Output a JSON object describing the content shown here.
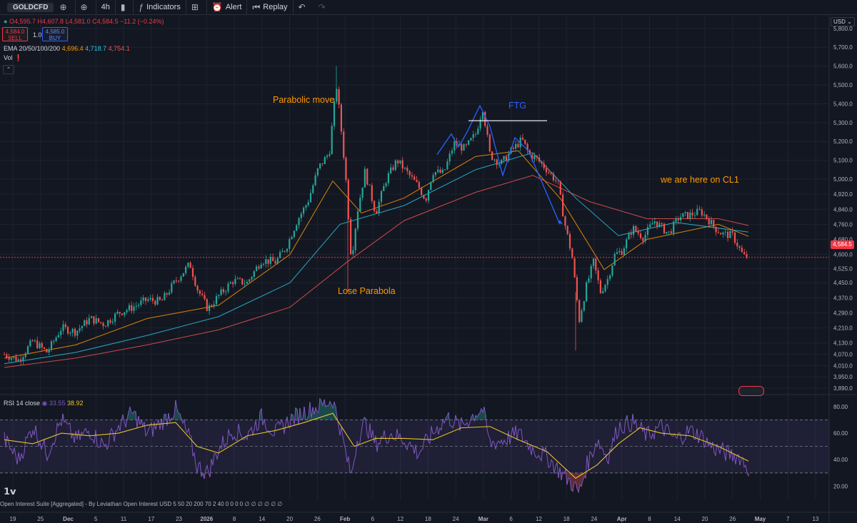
{
  "toolbar": {
    "symbol": "GOLDCFD",
    "interval": "4h",
    "indicators_label": "Indicators",
    "alert_label": "Alert",
    "replay_label": "Replay"
  },
  "legend": {
    "ohlc": {
      "open": "4,595.7",
      "high": "4,607.8",
      "low": "4,581.0",
      "close": "4,584.5",
      "change": "−11.2 (−0.24%)"
    },
    "sell_price": "4,584.0",
    "sell_label": "SELL",
    "spread": "1.0",
    "buy_price": "4,585.0",
    "buy_label": "BUY",
    "ema_title": "EMA 20/50/100/200",
    "ema_values": [
      "4,696.4",
      "4,718.7",
      "4,754.1"
    ],
    "vol_label": "Vol",
    "rsi_title": "RSI 14 close",
    "rsi_values": [
      "33.55",
      "38.92"
    ]
  },
  "colors": {
    "up": "#26a69a",
    "down": "#ef5350",
    "ema20": "#ff9800",
    "ema50": "#26c6da",
    "ema100": "#ef5350",
    "annotation": "#ff9800",
    "pattern": "#2962ff",
    "rsi": "#7e57c2",
    "rsi_ma": "#e6c229"
  },
  "annotations": {
    "parabolic": "Parabolic move",
    "lose": "Lose Parabola",
    "ftg": "FTG",
    "here": "we are here on CL1"
  },
  "currency": "USD",
  "current_price": "4,584.5",
  "bottom_text": "Open Interest Suite [Aggregated] - By Leviathan Open Interest USD 5 50 20 200 70 2 40  0 0 0 0 ∅ ∅ ∅ ∅ ∅ ∅",
  "chart_data": [
    {
      "type": "candlestick",
      "title": "GOLDCFD 4h",
      "x_ticks": [
        "19",
        "25",
        "Dec",
        "5",
        "11",
        "17",
        "23",
        "2026",
        "8",
        "14",
        "20",
        "26",
        "Feb",
        "6",
        "12",
        "18",
        "24",
        "Mar",
        "6",
        "12",
        "18",
        "24",
        "Apr",
        "8",
        "14",
        "20",
        "26",
        "May",
        "7",
        "13"
      ],
      "y_ticks": [
        5800,
        5700,
        5600,
        5500,
        5400,
        5300,
        5200,
        5100,
        5000,
        4920,
        4840,
        4760,
        4680,
        4600,
        4525,
        4450,
        4370,
        4290,
        4210,
        4130,
        4070,
        4010,
        3950,
        3890
      ],
      "ylim": [
        3860,
        5860
      ],
      "close_path": [
        [
          0,
          4070
        ],
        [
          20,
          4040
        ],
        [
          40,
          4140
        ],
        [
          60,
          4080
        ],
        [
          80,
          4210
        ],
        [
          100,
          4190
        ],
        [
          120,
          4260
        ],
        [
          140,
          4230
        ],
        [
          160,
          4290
        ],
        [
          180,
          4320
        ],
        [
          200,
          4360
        ],
        [
          220,
          4350
        ],
        [
          240,
          4460
        ],
        [
          260,
          4550
        ],
        [
          270,
          4420
        ],
        [
          285,
          4310
        ],
        [
          300,
          4380
        ],
        [
          320,
          4460
        ],
        [
          340,
          4450
        ],
        [
          360,
          4570
        ],
        [
          380,
          4560
        ],
        [
          395,
          4640
        ],
        [
          410,
          4780
        ],
        [
          425,
          4880
        ],
        [
          440,
          5060
        ],
        [
          455,
          5140
        ],
        [
          465,
          5500
        ],
        [
          470,
          5330
        ],
        [
          478,
          5020
        ],
        [
          486,
          4570
        ],
        [
          494,
          4820
        ],
        [
          505,
          5040
        ],
        [
          520,
          4820
        ],
        [
          535,
          5000
        ],
        [
          550,
          5100
        ],
        [
          565,
          5030
        ],
        [
          580,
          4960
        ],
        [
          590,
          4890
        ],
        [
          600,
          5040
        ],
        [
          615,
          5030
        ],
        [
          630,
          5190
        ],
        [
          645,
          5160
        ],
        [
          660,
          5240
        ],
        [
          670,
          5380
        ],
        [
          680,
          5130
        ],
        [
          695,
          5080
        ],
        [
          710,
          5150
        ],
        [
          725,
          5210
        ],
        [
          735,
          5130
        ],
        [
          745,
          5110
        ],
        [
          760,
          5050
        ],
        [
          775,
          4980
        ],
        [
          785,
          4760
        ],
        [
          795,
          4590
        ],
        [
          805,
          4250
        ],
        [
          815,
          4430
        ],
        [
          825,
          4560
        ],
        [
          835,
          4400
        ],
        [
          845,
          4470
        ],
        [
          855,
          4600
        ],
        [
          865,
          4620
        ],
        [
          880,
          4740
        ],
        [
          895,
          4690
        ],
        [
          910,
          4780
        ],
        [
          930,
          4710
        ],
        [
          945,
          4800
        ],
        [
          960,
          4810
        ],
        [
          975,
          4830
        ],
        [
          985,
          4790
        ],
        [
          995,
          4740
        ],
        [
          1005,
          4710
        ],
        [
          1020,
          4700
        ],
        [
          1035,
          4590
        ],
        [
          1042,
          4584.5
        ]
      ],
      "ema_series": [
        {
          "name": "EMA 20",
          "values": [
            [
              0,
              4050
            ],
            [
              100,
              4120
            ],
            [
              200,
              4260
            ],
            [
              300,
              4330
            ],
            [
              400,
              4600
            ],
            [
              460,
              4990
            ],
            [
              500,
              4820
            ],
            [
              560,
              4900
            ],
            [
              660,
              5120
            ],
            [
              720,
              5150
            ],
            [
              780,
              4890
            ],
            [
              840,
              4520
            ],
            [
              900,
              4680
            ],
            [
              1000,
              4760
            ],
            [
              1042,
              4696.4
            ]
          ]
        },
        {
          "name": "EMA 50",
          "values": [
            [
              0,
              4020
            ],
            [
              100,
              4080
            ],
            [
              200,
              4170
            ],
            [
              300,
              4270
            ],
            [
              400,
              4450
            ],
            [
              470,
              4760
            ],
            [
              560,
              4860
            ],
            [
              660,
              5050
            ],
            [
              740,
              5140
            ],
            [
              800,
              4900
            ],
            [
              860,
              4700
            ],
            [
              940,
              4770
            ],
            [
              1042,
              4718.7
            ]
          ]
        },
        {
          "name": "EMA 100",
          "values": [
            [
              0,
              4000
            ],
            [
              100,
              4050
            ],
            [
              200,
              4120
            ],
            [
              300,
              4200
            ],
            [
              400,
              4320
            ],
            [
              480,
              4560
            ],
            [
              560,
              4780
            ],
            [
              660,
              4930
            ],
            [
              740,
              5020
            ],
            [
              820,
              4880
            ],
            [
              900,
              4790
            ],
            [
              1000,
              4790
            ],
            [
              1042,
              4754.1
            ]
          ]
        }
      ]
    },
    {
      "type": "line",
      "title": "RSI 14 close",
      "y_ticks": [
        80,
        60,
        40,
        20
      ],
      "ylim": [
        10,
        88
      ],
      "bands": [
        30,
        50,
        70
      ],
      "series": [
        {
          "name": "RSI",
          "values": [
            [
              0,
              55
            ],
            [
              20,
              40
            ],
            [
              40,
              65
            ],
            [
              60,
              45
            ],
            [
              80,
              70
            ],
            [
              100,
              55
            ],
            [
              120,
              62
            ],
            [
              140,
              50
            ],
            [
              160,
              65
            ],
            [
              180,
              75
            ],
            [
              200,
              60
            ],
            [
              220,
              68
            ],
            [
              240,
              78
            ],
            [
              260,
              55
            ],
            [
              270,
              35
            ],
            [
              285,
              30
            ],
            [
              300,
              48
            ],
            [
              320,
              62
            ],
            [
              340,
              58
            ],
            [
              360,
              72
            ],
            [
              380,
              60
            ],
            [
              400,
              70
            ],
            [
              420,
              76
            ],
            [
              440,
              80
            ],
            [
              460,
              85
            ],
            [
              470,
              65
            ],
            [
              480,
              40
            ],
            [
              486,
              28
            ],
            [
              494,
              55
            ],
            [
              505,
              68
            ],
            [
              520,
              52
            ],
            [
              540,
              60
            ],
            [
              560,
              55
            ],
            [
              580,
              45
            ],
            [
              600,
              60
            ],
            [
              620,
              72
            ],
            [
              640,
              65
            ],
            [
              660,
              75
            ],
            [
              670,
              78
            ],
            [
              680,
              52
            ],
            [
              700,
              55
            ],
            [
              720,
              60
            ],
            [
              740,
              48
            ],
            [
              760,
              42
            ],
            [
              780,
              30
            ],
            [
              795,
              22
            ],
            [
              805,
              15
            ],
            [
              815,
              35
            ],
            [
              830,
              55
            ],
            [
              845,
              42
            ],
            [
              860,
              65
            ],
            [
              880,
              68
            ],
            [
              900,
              58
            ],
            [
              920,
              65
            ],
            [
              940,
              55
            ],
            [
              960,
              62
            ],
            [
              975,
              58
            ],
            [
              990,
              50
            ],
            [
              1010,
              45
            ],
            [
              1030,
              42
            ],
            [
              1042,
              33.55
            ]
          ]
        },
        {
          "name": "RSI MA",
          "values": [
            [
              0,
              55
            ],
            [
              40,
              52
            ],
            [
              80,
              60
            ],
            [
              120,
              58
            ],
            [
              160,
              60
            ],
            [
              200,
              66
            ],
            [
              240,
              68
            ],
            [
              270,
              50
            ],
            [
              300,
              45
            ],
            [
              340,
              58
            ],
            [
              380,
              62
            ],
            [
              420,
              68
            ],
            [
              460,
              75
            ],
            [
              490,
              50
            ],
            [
              520,
              56
            ],
            [
              560,
              56
            ],
            [
              600,
              55
            ],
            [
              640,
              64
            ],
            [
              680,
              65
            ],
            [
              720,
              55
            ],
            [
              760,
              46
            ],
            [
              800,
              26
            ],
            [
              830,
              36
            ],
            [
              860,
              52
            ],
            [
              890,
              64
            ],
            [
              920,
              60
            ],
            [
              960,
              58
            ],
            [
              1000,
              50
            ],
            [
              1042,
              38.92
            ]
          ]
        }
      ]
    }
  ]
}
